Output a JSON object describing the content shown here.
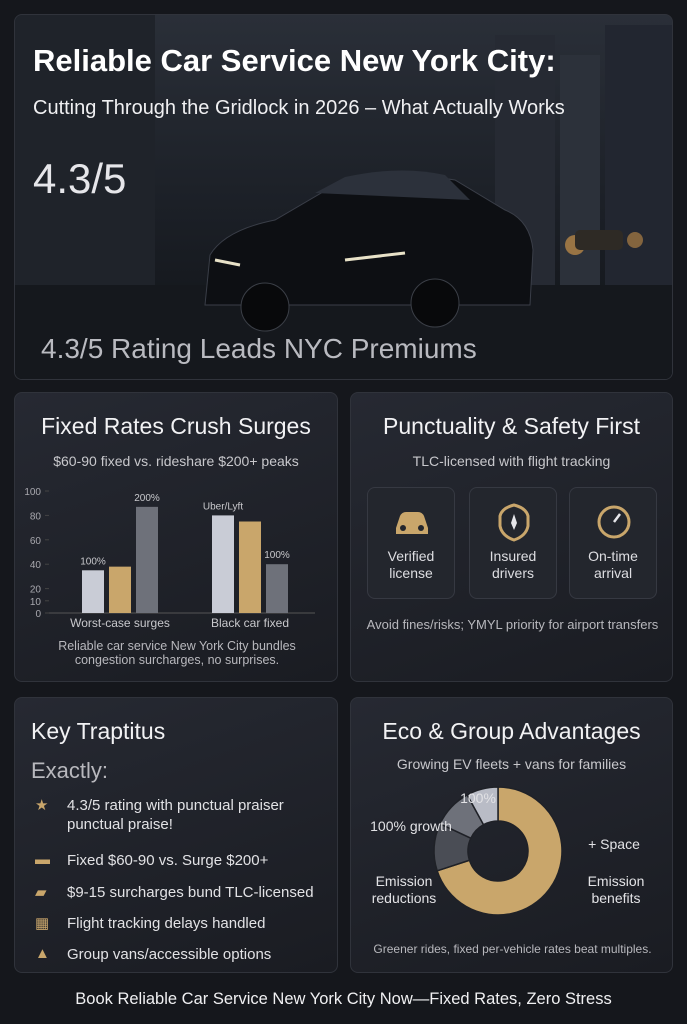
{
  "header": {
    "title": "Reliable Car Service New York City:",
    "subtitle": "Cutting Through the Gridlock in 2026 – What Actually Works",
    "rating": "4.3/5",
    "caption": "4.3/5 Rating Leads NYC Premiums"
  },
  "chart_data": [
    {
      "type": "bar",
      "title": "Fixed Rates Crush Surges",
      "subtitle": "$60-90 fixed vs. rideshare $200+ peaks",
      "categories": [
        "Worst-case surges",
        "Black car fixed"
      ],
      "series": [
        {
          "color": "#c9ccd6",
          "values": [
            35,
            80
          ]
        },
        {
          "color": "#c9a66b",
          "values": [
            38,
            75
          ]
        },
        {
          "color": "#6e717a",
          "values": [
            87,
            40
          ]
        }
      ],
      "ylim": [
        0,
        100
      ],
      "yticks": [
        0,
        10,
        20,
        40,
        60,
        80,
        100
      ],
      "annotations": [
        "100%",
        "200%",
        "Uber/Lyft",
        "100%"
      ],
      "note": "Reliable car service New York City bundles congestion surcharges, no surprises."
    },
    {
      "type": "pie",
      "title": "Eco & Group Advantages",
      "subtitle": "Growing EV fleets + vans for families",
      "values": [
        70,
        12,
        10,
        8
      ],
      "colors": [
        "#c9a66b",
        "#4a4d55",
        "#6e717a",
        "#b9bcc6"
      ],
      "annotations": [
        "100%",
        "100% growth",
        "+ Space",
        "Emission reductions",
        "Emission benefits"
      ],
      "note": "Greener rides, fixed per-vehicle rates beat multiples."
    }
  ],
  "safety": {
    "title": "Punctuality & Safety First",
    "subtitle": "TLC-licensed with flight tracking",
    "badges": [
      "Verified license",
      "Insured drivers",
      "On-time arrival"
    ],
    "note": "Avoid fines/risks; YMYL priority for airport transfers"
  },
  "traits": {
    "title": "Key Traptitus",
    "subtitle": "Exactly:",
    "items": [
      "4.3/5 rating with punctual praiser punctual praise!",
      "Fixed $60-90 vs. Surge $200+",
      "$9-15 surcharges bund TLC-licensed",
      "Flight tracking delays handled",
      "Group vans/accessible options"
    ]
  },
  "footer": "Book Reliable Car Service New York City Now—Fixed Rates, Zero Stress"
}
